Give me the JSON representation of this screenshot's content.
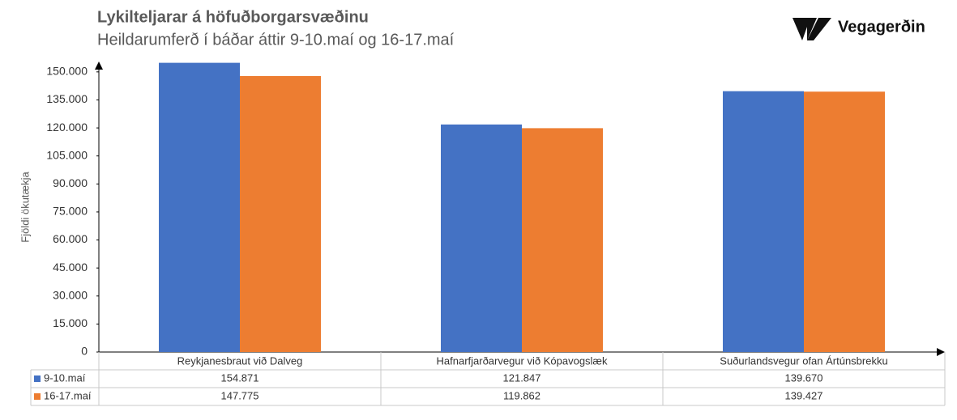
{
  "brand": "Vegagerðin",
  "chart_data": {
    "type": "bar",
    "title": "Lykilteljarar á höfuðborgarsvæðinu",
    "subtitle": "Heildarumferð í báðar áttir 9-10.maí og 16-17.maí",
    "y_label": "Fjöldi ökutækja",
    "categories": [
      "Reykjanesbraut við Dalveg",
      "Hafnarfjarðarvegur við Kópavogslæk",
      "Suðurlandsvegur ofan Ártúnsbrekku"
    ],
    "series": [
      {
        "name": "9-10.maí",
        "color": "#4472c4",
        "values": [
          154871,
          121847,
          139670
        ],
        "value_labels": [
          "154.871",
          "121.847",
          "139.670"
        ]
      },
      {
        "name": "16-17.maí",
        "color": "#ed7d31",
        "values": [
          147775,
          119862,
          139427
        ],
        "value_labels": [
          "147.775",
          "119.862",
          "139.427"
        ]
      }
    ],
    "ylim": [
      0,
      156000
    ],
    "yticks": [
      0,
      {
        "value": 15000,
        "label": "15.000"
      },
      {
        "value": 30000,
        "label": "30.000"
      },
      {
        "value": 45000,
        "label": "45.000"
      },
      {
        "value": 60000,
        "label": "60.000"
      },
      {
        "value": 75000,
        "label": "75.000"
      },
      {
        "value": 90000,
        "label": "90.000"
      },
      {
        "value": 105000,
        "label": "105.000"
      },
      {
        "value": 120000,
        "label": "120.000"
      },
      {
        "value": 135000,
        "label": "135.000"
      },
      {
        "value": 150000,
        "label": "150.000"
      }
    ],
    "grid": false
  }
}
